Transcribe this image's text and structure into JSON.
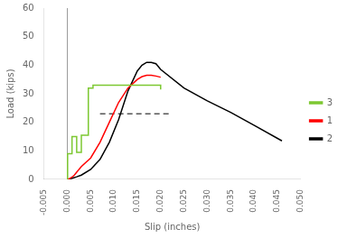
{
  "chart_data": {
    "type": "line",
    "xlabel": "Slip (inches)",
    "ylabel": "Load (kips)",
    "xlim": [
      -0.005,
      0.05
    ],
    "ylim": [
      0,
      60
    ],
    "xticks": [
      -0.005,
      {
        "value": 0.0,
        "label": "0.000"
      },
      0.005,
      {
        "value": 0.01,
        "label": "0.010"
      },
      0.015,
      {
        "value": 0.02,
        "label": "0.020"
      },
      0.025,
      {
        "value": 0.03,
        "label": "0.030"
      },
      0.035,
      {
        "value": 0.04,
        "label": "0.040"
      },
      0.045,
      {
        "value": 0.05,
        "label": "0.050"
      }
    ],
    "yticks": [
      0,
      10,
      20,
      30,
      40,
      50,
      60
    ],
    "grid": false,
    "legend": "right",
    "series": [
      {
        "name": "3",
        "color": "#7dc832",
        "x": [
          0.0,
          5e-05,
          5e-05,
          0.001,
          0.001,
          0.002,
          0.002,
          0.003,
          0.003,
          0.0045,
          0.0045,
          0.0055,
          0.0055,
          0.02,
          0.02
        ],
        "values": [
          0.0,
          0.0,
          9.0,
          9.0,
          15.0,
          15.0,
          9.5,
          9.5,
          15.5,
          15.5,
          32.0,
          32.0,
          33.0,
          33.0,
          31.5
        ]
      },
      {
        "name": "1",
        "color": "red",
        "x": [
          0.0,
          0.0002,
          0.0005,
          0.001,
          0.0015,
          0.002,
          0.003,
          0.005,
          0.007,
          0.009,
          0.011,
          0.013,
          0.015,
          0.016,
          0.017,
          0.018,
          0.019,
          0.02
        ],
        "values": [
          0.0,
          0.1,
          0.3,
          0.8,
          1.5,
          2.5,
          4.5,
          7.5,
          13.0,
          20.0,
          27.0,
          32.0,
          35.0,
          36.0,
          36.5,
          36.5,
          36.2,
          35.8
        ]
      },
      {
        "name": "2",
        "color": "black",
        "x": [
          0.0,
          0.0002,
          0.0005,
          0.001,
          0.002,
          0.003,
          0.005,
          0.007,
          0.009,
          0.011,
          0.013,
          0.015,
          0.016,
          0.017,
          0.018,
          0.019,
          0.02,
          0.025,
          0.03,
          0.035,
          0.04,
          0.046
        ],
        "values": [
          0.0,
          0.05,
          0.15,
          0.4,
          0.9,
          1.5,
          3.5,
          7.0,
          13.0,
          21.0,
          31.0,
          38.0,
          40.0,
          41.0,
          41.0,
          40.5,
          38.5,
          32.0,
          27.5,
          23.5,
          19.0,
          13.5
        ]
      }
    ],
    "reference_lines": [
      {
        "x": [
          0.007,
          0.022
        ],
        "y": 23.0,
        "color": "black",
        "line_style": "dashed"
      }
    ],
    "vlines": [
      {
        "x": 0.0,
        "color": "gray"
      }
    ]
  }
}
